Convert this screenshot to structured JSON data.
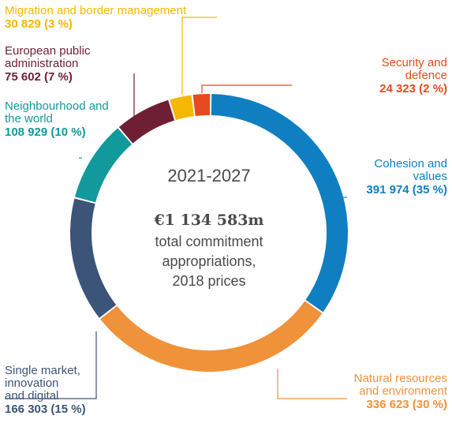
{
  "chart_data": {
    "type": "donut",
    "center": {
      "period": "2021-2027",
      "total": "€1 134 583m",
      "description_lines": [
        "total commitment",
        "appropriations,",
        "2018 prices"
      ]
    },
    "series": [
      {
        "label_lines": [
          "Cohesion and",
          "values"
        ],
        "value_text": "391 974 (35 %)",
        "value": 391974,
        "percent": 35,
        "color": "#0f7fc1"
      },
      {
        "label_lines": [
          "Natural resources",
          "and environment"
        ],
        "value_text": "336 623 (30 %)",
        "value": 336623,
        "percent": 30,
        "color": "#f0923a"
      },
      {
        "label_lines": [
          "Single market,",
          "innovation",
          "and digital"
        ],
        "value_text": "166 303 (15 %)",
        "value": 166303,
        "percent": 15,
        "color": "#3b5478"
      },
      {
        "label_lines": [
          "Neighbourhood and",
          "the world"
        ],
        "value_text": "108 929 (10 %)",
        "value": 108929,
        "percent": 10,
        "color": "#12999c"
      },
      {
        "label_lines": [
          "European public",
          "administration"
        ],
        "value_text": "75 602 (7 %)",
        "value": 75602,
        "percent": 7,
        "color": "#6e1f33"
      },
      {
        "label_lines": [
          "Migration and border management"
        ],
        "value_text": "30 829 (3 %)",
        "value": 30829,
        "percent": 3,
        "color": "#f5b800"
      },
      {
        "label_lines": [
          "Security and",
          "defence"
        ],
        "value_text": "24 323 (2 %)",
        "value": 24323,
        "percent": 2,
        "color": "#e54a1e"
      }
    ]
  }
}
